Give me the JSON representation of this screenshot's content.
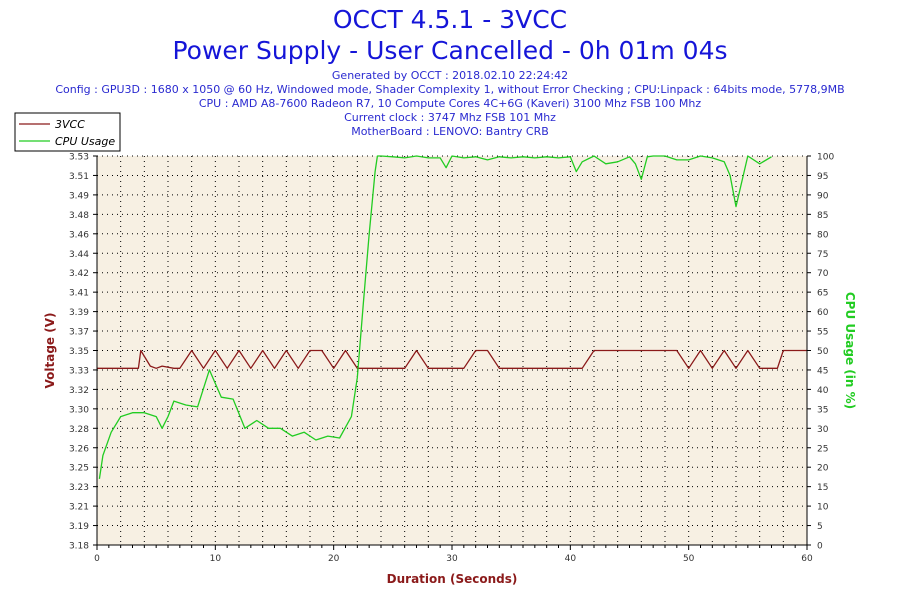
{
  "header": {
    "title": "OCCT 4.5.1 - 3VCC",
    "subtitle": "Power Supply - User Cancelled - 0h 01m 04s",
    "info_lines": [
      "Generated by OCCT : 2018.02.10 22:24:42",
      "Config : GPU3D : 1680 x 1050 @ 60 Hz, Windowed mode, Shader Complexity 1, without Error Checking ; CPU:Linpack : 64bits mode, 5778,9MB",
      "CPU : AMD A8-7600 Radeon R7, 10 Compute Cores 4C+6G (Kaveri) 3100 Mhz FSB 100 Mhz",
      "Current clock : 3747 Mhz FSB 101 Mhz",
      "MotherBoard : LENOVO: Bantry CRB"
    ]
  },
  "colors": {
    "title": "#1515d8",
    "info": "#2a2ad0",
    "voltage": "#8b1a1a",
    "cpu": "#22cc22",
    "plot_bg": "#f7f0e3",
    "grid": "#000000"
  },
  "chart_data": {
    "type": "line",
    "title": "OCCT 4.5.1 - 3VCC",
    "xlabel": "Duration (Seconds)",
    "ylabel_left": "Voltage (V)",
    "ylabel_right": "CPU Usage (in %)",
    "xlim": [
      0,
      60
    ],
    "ylim_left": [
      3.18,
      3.53
    ],
    "ylim_right": [
      0,
      100
    ],
    "x_ticks": [
      "0",
      "10",
      "20",
      "30",
      "40",
      "50",
      "60"
    ],
    "y_ticks_left": [
      "3.18",
      "3.19",
      "3.21",
      "3.23",
      "3.25",
      "3.26",
      "3.28",
      "3.30",
      "3.32",
      "3.33",
      "3.35",
      "3.37",
      "3.39",
      "3.41",
      "3.42",
      "3.44",
      "3.46",
      "3.48",
      "3.49",
      "3.51",
      "3.53"
    ],
    "y_ticks_right": [
      "0",
      "5",
      "10",
      "15",
      "20",
      "25",
      "30",
      "35",
      "40",
      "45",
      "50",
      "55",
      "60",
      "65",
      "70",
      "75",
      "80",
      "85",
      "90",
      "95",
      "100"
    ],
    "grid": true,
    "legend_position": "top-left",
    "series": [
      {
        "name": "3VCC",
        "axis": "left",
        "points": [
          [
            0,
            3.339
          ],
          [
            3.5,
            3.339
          ],
          [
            3.7,
            3.355
          ],
          [
            4.5,
            3.341
          ],
          [
            5,
            3.339
          ],
          [
            5.5,
            3.341
          ],
          [
            6.5,
            3.339
          ],
          [
            7,
            3.339
          ],
          [
            8,
            3.355
          ],
          [
            9,
            3.339
          ],
          [
            10,
            3.355
          ],
          [
            11,
            3.339
          ],
          [
            12,
            3.355
          ],
          [
            13,
            3.339
          ],
          [
            14,
            3.355
          ],
          [
            15,
            3.339
          ],
          [
            16,
            3.355
          ],
          [
            17,
            3.339
          ],
          [
            18,
            3.355
          ],
          [
            19,
            3.355
          ],
          [
            20,
            3.339
          ],
          [
            21,
            3.355
          ],
          [
            22,
            3.339
          ],
          [
            24,
            3.339
          ],
          [
            25,
            3.339
          ],
          [
            26,
            3.339
          ],
          [
            27,
            3.355
          ],
          [
            28,
            3.339
          ],
          [
            30,
            3.339
          ],
          [
            31,
            3.339
          ],
          [
            32,
            3.355
          ],
          [
            33,
            3.355
          ],
          [
            34,
            3.339
          ],
          [
            37,
            3.339
          ],
          [
            39,
            3.339
          ],
          [
            39.5,
            3.339
          ],
          [
            40,
            3.339
          ],
          [
            41,
            3.339
          ],
          [
            42,
            3.355
          ],
          [
            43,
            3.355
          ],
          [
            44,
            3.355
          ],
          [
            48,
            3.355
          ],
          [
            49,
            3.355
          ],
          [
            50,
            3.339
          ],
          [
            51,
            3.355
          ],
          [
            52,
            3.339
          ],
          [
            53,
            3.355
          ],
          [
            54,
            3.339
          ],
          [
            55,
            3.355
          ],
          [
            56,
            3.339
          ],
          [
            57,
            3.339
          ],
          [
            57.5,
            3.339
          ],
          [
            58,
            3.355
          ],
          [
            60,
            3.355
          ]
        ]
      },
      {
        "name": "CPU Usage",
        "axis": "right",
        "points": [
          [
            0.2,
            17
          ],
          [
            0.5,
            23
          ],
          [
            1.2,
            29
          ],
          [
            2,
            33
          ],
          [
            3,
            34
          ],
          [
            4,
            34
          ],
          [
            5,
            33
          ],
          [
            5.5,
            30
          ],
          [
            6,
            33
          ],
          [
            6.5,
            37
          ],
          [
            7.5,
            36
          ],
          [
            8.5,
            35.5
          ],
          [
            9.5,
            45
          ],
          [
            10.5,
            38
          ],
          [
            11.5,
            37.5
          ],
          [
            12.5,
            30
          ],
          [
            13.5,
            32
          ],
          [
            14.5,
            30
          ],
          [
            15.5,
            30
          ],
          [
            16.5,
            28
          ],
          [
            17.5,
            29
          ],
          [
            18.5,
            27
          ],
          [
            19.5,
            28
          ],
          [
            20.5,
            27.5
          ],
          [
            21.5,
            33
          ],
          [
            22,
            43
          ],
          [
            22.5,
            62
          ],
          [
            23,
            80
          ],
          [
            23.5,
            96
          ],
          [
            23.7,
            100
          ],
          [
            24,
            100
          ],
          [
            25,
            99.8
          ],
          [
            26,
            99.5
          ],
          [
            27,
            100
          ],
          [
            28,
            99.5
          ],
          [
            29,
            99.5
          ],
          [
            29.5,
            97
          ],
          [
            30,
            100
          ],
          [
            31,
            99.5
          ],
          [
            32,
            99.8
          ],
          [
            33,
            99
          ],
          [
            34,
            99.8
          ],
          [
            35,
            99.5
          ],
          [
            36,
            99.8
          ],
          [
            37,
            99.5
          ],
          [
            38,
            99.8
          ],
          [
            39,
            99.5
          ],
          [
            40,
            99.8
          ],
          [
            40.5,
            96
          ],
          [
            41,
            98.5
          ],
          [
            42,
            100
          ],
          [
            43,
            98
          ],
          [
            44,
            98.5
          ],
          [
            45,
            99.8
          ],
          [
            45.5,
            98
          ],
          [
            46,
            94
          ],
          [
            46.5,
            99.8
          ],
          [
            47,
            100
          ],
          [
            48,
            100
          ],
          [
            49,
            99
          ],
          [
            50,
            99
          ],
          [
            51,
            100
          ],
          [
            52,
            99.5
          ],
          [
            53,
            98.5
          ],
          [
            53.5,
            95
          ],
          [
            54,
            87
          ],
          [
            55,
            100
          ],
          [
            56,
            98
          ],
          [
            57,
            99.8
          ]
        ]
      }
    ]
  }
}
